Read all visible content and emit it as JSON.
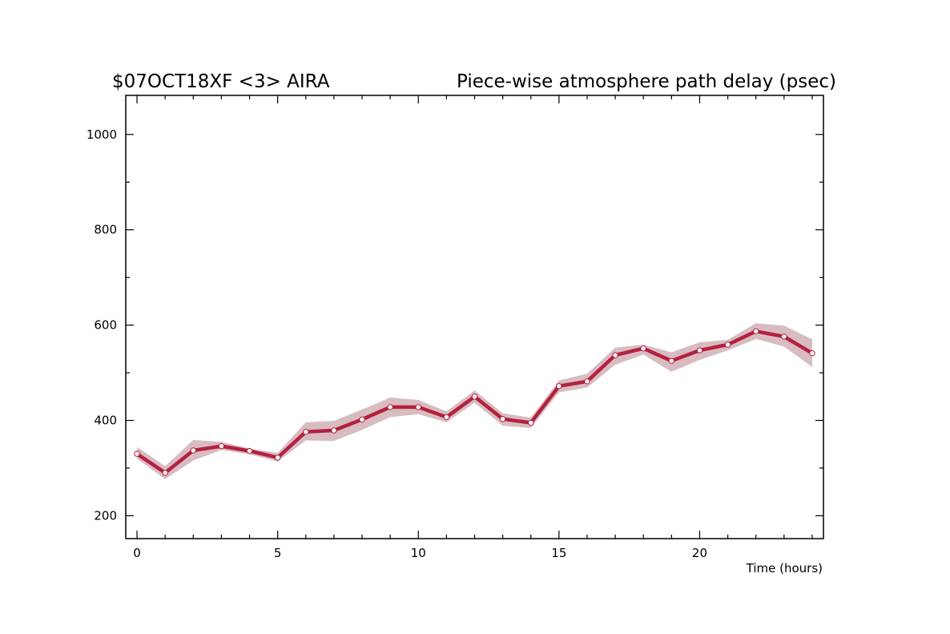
{
  "chart_data": {
    "type": "line",
    "title_left": "$07OCT18XF <3>  AIRA",
    "title_right": "Piece-wise atmosphere path delay (psec)",
    "xlabel": "Time (hours)",
    "ylabel": "",
    "xlim": [
      -0.4,
      24.4
    ],
    "ylim": [
      152,
      1082
    ],
    "x_ticks": [
      0,
      5,
      10,
      15,
      20
    ],
    "y_ticks": [
      200,
      400,
      600,
      800,
      1000
    ],
    "grid": false,
    "colors": {
      "line": "#b5203f",
      "band": "#d7bcc1",
      "marker_fill": "#ffffff"
    },
    "series": [
      {
        "x": [
          0,
          1,
          2,
          3,
          4,
          5,
          6,
          7,
          8,
          9,
          10,
          11,
          12,
          13,
          14,
          15,
          16,
          17,
          18,
          19,
          20,
          21,
          22,
          23,
          24
        ],
        "values": [
          330,
          290,
          337,
          346,
          336,
          322,
          376,
          379,
          402,
          428,
          428,
          407,
          450,
          403,
          395,
          472,
          482,
          537,
          551,
          525,
          547,
          559,
          587,
          576,
          541
        ],
        "band_upper": [
          344,
          304,
          359,
          355,
          341,
          332,
          396,
          399,
          423,
          448,
          443,
          419,
          463,
          415,
          406,
          484,
          498,
          553,
          559,
          543,
          564,
          569,
          604,
          599,
          570
        ],
        "band_lower": [
          320,
          277,
          316,
          338,
          329,
          314,
          358,
          357,
          380,
          407,
          413,
          396,
          437,
          389,
          384,
          459,
          469,
          517,
          538,
          502,
          527,
          547,
          571,
          555,
          512
        ]
      }
    ]
  }
}
